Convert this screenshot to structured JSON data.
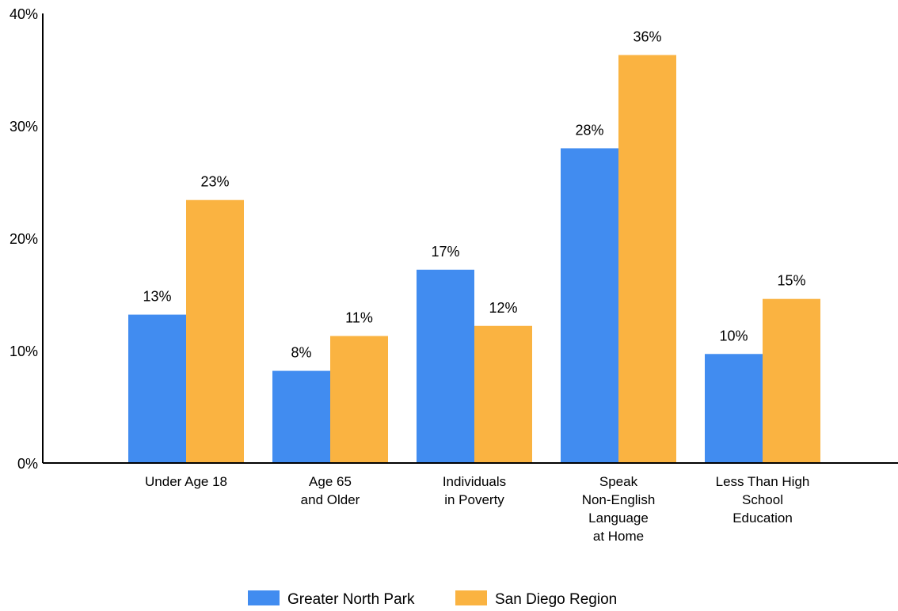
{
  "chart_data": {
    "type": "bar",
    "categories": [
      [
        "Under Age 18"
      ],
      [
        "Age 65",
        "and Older"
      ],
      [
        "Individuals",
        "in Poverty"
      ],
      [
        "Speak",
        "Non-English",
        "Language",
        "at Home"
      ],
      [
        "Less Than High",
        "School",
        "Education"
      ]
    ],
    "series": [
      {
        "name": "Greater North Park",
        "color": "#418cf0",
        "values": [
          13.2,
          8.2,
          17.2,
          28.0,
          9.7
        ],
        "labels": [
          "13%",
          "8%",
          "17%",
          "28%",
          "10%"
        ]
      },
      {
        "name": "San Diego Region",
        "color": "#fab341",
        "values": [
          23.4,
          11.3,
          12.2,
          36.3,
          14.6
        ],
        "labels": [
          "23%",
          "11%",
          "12%",
          "36%",
          "15%"
        ]
      }
    ],
    "ylim": [
      0,
      40
    ],
    "yticks": [
      {
        "value": 0,
        "label": "0%"
      },
      {
        "value": 10,
        "label": "10%"
      },
      {
        "value": 20,
        "label": "20%"
      },
      {
        "value": 30,
        "label": "30%"
      },
      {
        "value": 40,
        "label": "40%"
      }
    ],
    "legend_position": "bottom-center",
    "grid": false
  }
}
